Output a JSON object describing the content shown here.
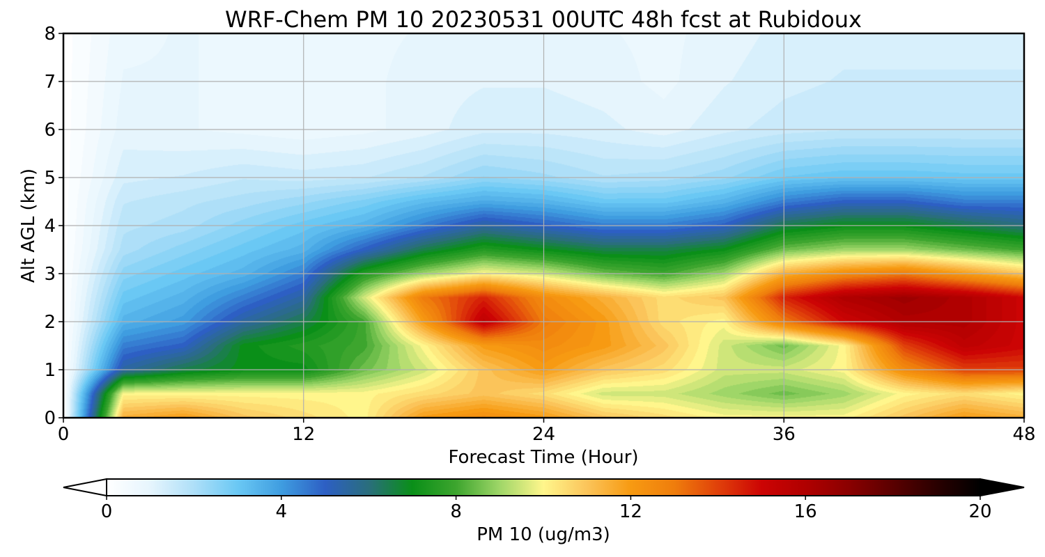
{
  "chart_data": {
    "type": "heatmap",
    "title": "WRF-Chem PM 10  20230531 00UTC 48h fcst at Rubidoux",
    "xlabel": "Forecast Time (Hour)",
    "ylabel": "Alt AGL (km)",
    "xlim": [
      0,
      48
    ],
    "ylim": [
      0,
      8
    ],
    "x_ticks": [
      "0",
      "12",
      "24",
      "36",
      "48"
    ],
    "y_ticks": [
      "0",
      "1",
      "2",
      "3",
      "4",
      "5",
      "6",
      "7",
      "8"
    ],
    "grid": true,
    "colorbar": {
      "label": "PM 10  (ug/m3)",
      "range": [
        0,
        20
      ],
      "ticks": [
        "0",
        "4",
        "8",
        "12",
        "16",
        "20"
      ],
      "extend": "both",
      "stops": [
        {
          "v": 0,
          "c": "#ffffff"
        },
        {
          "v": 1,
          "c": "#e6f5fd"
        },
        {
          "v": 2,
          "c": "#aedff8"
        },
        {
          "v": 3,
          "c": "#6ac8f4"
        },
        {
          "v": 4,
          "c": "#3f9de0"
        },
        {
          "v": 5,
          "c": "#2d5fc4"
        },
        {
          "v": 6,
          "c": "#2a6e7c"
        },
        {
          "v": 7,
          "c": "#0a8f18"
        },
        {
          "v": 8,
          "c": "#3da52e"
        },
        {
          "v": 9,
          "c": "#9fd668"
        },
        {
          "v": 10,
          "c": "#fff68c"
        },
        {
          "v": 11,
          "c": "#fbc45a"
        },
        {
          "v": 12,
          "c": "#f79a12"
        },
        {
          "v": 13,
          "c": "#ef7d0c"
        },
        {
          "v": 14,
          "c": "#e0400a"
        },
        {
          "v": 15,
          "c": "#cc0404"
        },
        {
          "v": 16,
          "c": "#b00000"
        },
        {
          "v": 17,
          "c": "#8a0000"
        },
        {
          "v": 18,
          "c": "#5a0000"
        },
        {
          "v": 19,
          "c": "#2a0000"
        },
        {
          "v": 20,
          "c": "#000000"
        }
      ]
    },
    "grid_data": {
      "x": [
        0,
        3,
        6,
        9,
        12,
        15,
        18,
        21,
        24,
        27,
        30,
        33,
        36,
        39,
        42,
        45,
        48
      ],
      "y": [
        0,
        0.5,
        1,
        1.5,
        2,
        2.5,
        3,
        3.5,
        4,
        4.5,
        5,
        6,
        7,
        8
      ],
      "z": [
        [
          0,
          11.5,
          12,
          11,
          10.5,
          10,
          12,
          12.5,
          12,
          11,
          10.5,
          10,
          10,
          10,
          11,
          12,
          11.5
        ],
        [
          0,
          10,
          10,
          10,
          10,
          10,
          10.5,
          11,
          10.5,
          9.5,
          9.5,
          9,
          8.5,
          9,
          10,
          10.5,
          10
        ],
        [
          0,
          5.5,
          6.5,
          7,
          7,
          8.5,
          9.5,
          11,
          12,
          11,
          10.5,
          9.5,
          9.5,
          10,
          12.5,
          14,
          14
        ],
        [
          0,
          4.5,
          5,
          7,
          7.5,
          8,
          10,
          12,
          12.5,
          12,
          11,
          9.5,
          8.5,
          10,
          14,
          15.5,
          15
        ],
        [
          0,
          3.5,
          4,
          5.5,
          6.5,
          8,
          12,
          15.5,
          13,
          12,
          10.5,
          10,
          13,
          15,
          16,
          16,
          15
        ],
        [
          0,
          3,
          3.5,
          4.5,
          5.5,
          9.5,
          13,
          14.5,
          12.5,
          11.5,
          10.5,
          11,
          14.5,
          16,
          16.5,
          16,
          15
        ],
        [
          0,
          2.5,
          3,
          3.5,
          4.5,
          7.5,
          9,
          10,
          9.5,
          8.5,
          8,
          9,
          11.5,
          12.5,
          13,
          12,
          11
        ],
        [
          0,
          2,
          2.5,
          3,
          3.5,
          5,
          6.5,
          7.5,
          7,
          6.5,
          6.5,
          7,
          8.5,
          9,
          9,
          8.5,
          8
        ],
        [
          0,
          1.8,
          2,
          2.5,
          3,
          3.5,
          4.5,
          5.5,
          5,
          4.5,
          4.5,
          5,
          6.5,
          7,
          7,
          6.5,
          6
        ],
        [
          0,
          1.6,
          1.8,
          2,
          2.3,
          2.7,
          3.3,
          3.7,
          3.5,
          3,
          3,
          3.5,
          4.5,
          5,
          5,
          4.5,
          4.5
        ],
        [
          0,
          1.3,
          1.4,
          1.6,
          1.5,
          1.6,
          1.9,
          2.4,
          2.2,
          1.9,
          2,
          2.3,
          2.9,
          3.1,
          3.1,
          3,
          3
        ],
        [
          0,
          1,
          0.9,
          0.8,
          0.7,
          0.8,
          1,
          1.3,
          1.3,
          1.2,
          1,
          1.3,
          1.5,
          1.6,
          1.6,
          1.6,
          1.6
        ],
        [
          0,
          0.9,
          0.9,
          0.8,
          0.7,
          0.8,
          1,
          1.1,
          1.1,
          1,
          0.8,
          1.1,
          1.3,
          1.4,
          1.4,
          1.4,
          1.4
        ],
        [
          0,
          0.8,
          0.9,
          0.8,
          0.8,
          0.8,
          0.9,
          1,
          1,
          0.9,
          0.8,
          1,
          1.2,
          1.3,
          1.3,
          1.3,
          1.3
        ]
      ]
    }
  }
}
